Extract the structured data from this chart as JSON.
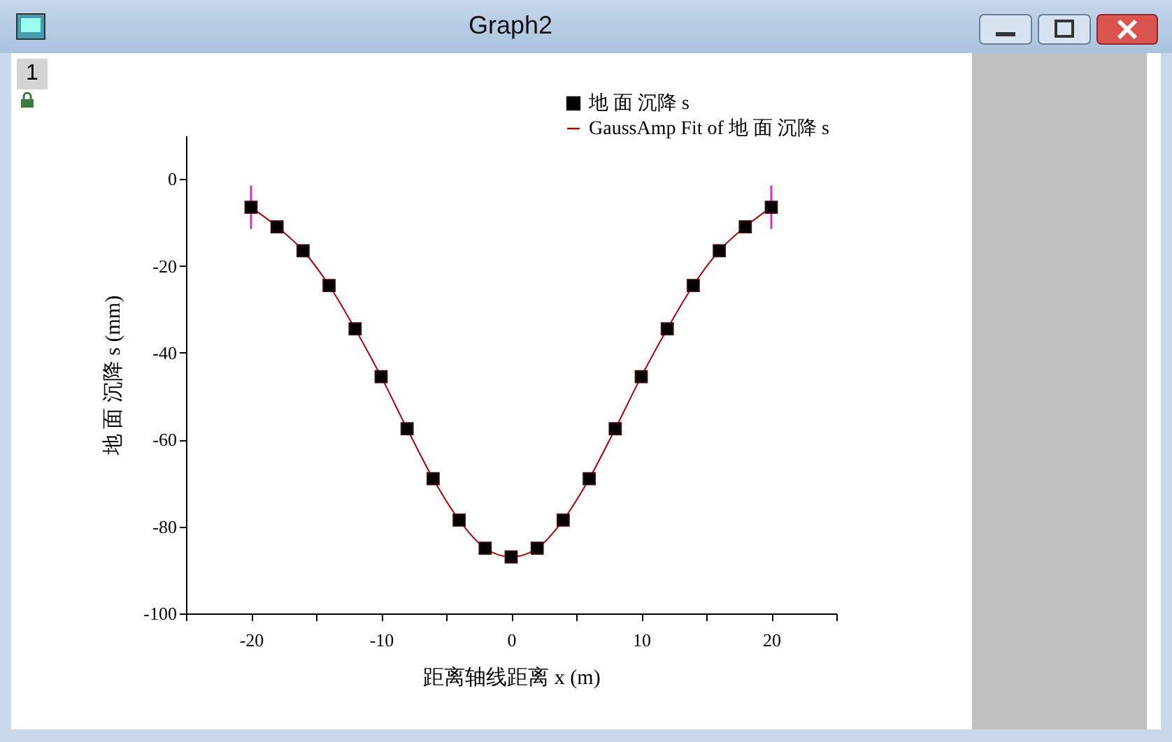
{
  "chart_data": {
    "type": "scatter",
    "title": "Graph2",
    "xlabel": "距离轴线距离 x (m)",
    "ylabel": "地 面 沉降 s (mm)",
    "annotations": [
      "1"
    ],
    "xlim": [
      -25,
      25
    ],
    "xticks": [
      {
        "value": -25,
        "label": null
      },
      -20,
      {
        "value": -15,
        "label": null
      },
      -10,
      {
        "value": -5,
        "label": null
      },
      0,
      {
        "value": 5,
        "label": null
      },
      10,
      {
        "value": 15,
        "label": null
      },
      20,
      {
        "value": 25,
        "label": null
      }
    ],
    "ylim": [
      -100,
      10
    ],
    "yticks": [
      -100,
      -80,
      -60,
      -40,
      -20,
      0
    ],
    "grid": false,
    "legend": "top right",
    "series": [
      {
        "name": "地 面 沉降 s",
        "type": "scatter",
        "marker": "square",
        "color": "#000000",
        "x": [
          -20,
          -18,
          -16,
          -14,
          -12,
          -10,
          -8,
          -6,
          -4,
          -2,
          0,
          2,
          4,
          6,
          8,
          10,
          12,
          14,
          16,
          18,
          20
        ],
        "values": [
          -6.5,
          -11,
          -16.5,
          -24.5,
          -34.5,
          -45.5,
          -57.5,
          -69,
          -78.5,
          -85,
          -87,
          -85,
          -78.5,
          -69,
          -57.5,
          -45.5,
          -34.5,
          -24.5,
          -16.5,
          -11,
          -6.5
        ],
        "errors": [
          5,
          null,
          null,
          null,
          null,
          null,
          null,
          null,
          null,
          null,
          null,
          null,
          null,
          null,
          null,
          null,
          null,
          null,
          null,
          null,
          5
        ]
      },
      {
        "name": "GaussAmp Fit of 地 面 沉降 s",
        "type": "line",
        "marker": "none",
        "color": "#b00000",
        "line_style": "solid",
        "x": [
          -20,
          -18,
          -16,
          -14,
          -12,
          -10,
          -8,
          -6,
          -4,
          -2,
          0,
          2,
          4,
          6,
          8,
          10,
          12,
          14,
          16,
          18,
          20
        ],
        "values": [
          -6.5,
          -11,
          -16.5,
          -24.5,
          -34.5,
          -45.5,
          -57.5,
          -69,
          -78.5,
          -85,
          -87,
          -85,
          -78.5,
          -69,
          -57.5,
          -45.5,
          -34.5,
          -24.5,
          -16.5,
          -11,
          -6.5
        ]
      }
    ]
  }
}
